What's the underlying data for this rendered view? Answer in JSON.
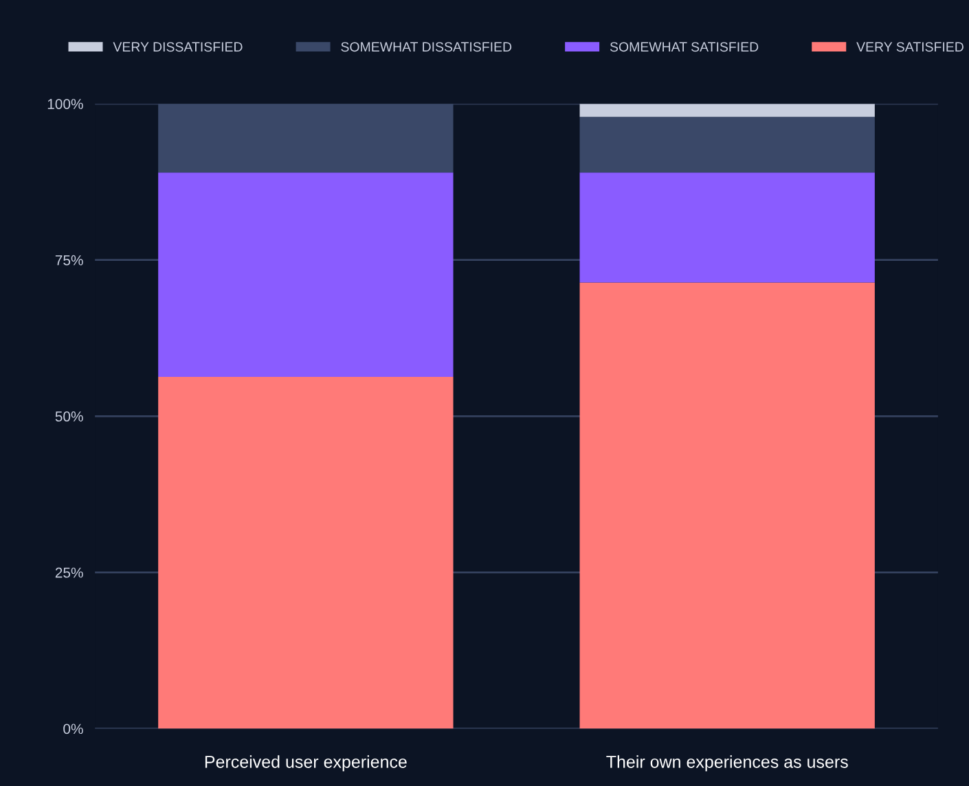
{
  "chart_data": {
    "type": "bar",
    "stacked": true,
    "categories": [
      "Perceived user experience",
      "Their own experiences as users"
    ],
    "series": [
      {
        "name": "VERY SATISFIED",
        "color": "#ff7a78",
        "values": [
          56.3,
          71.4
        ]
      },
      {
        "name": "SOMEWHAT SATISFIED",
        "color": "#8a5cff",
        "values": [
          32.7,
          17.6
        ]
      },
      {
        "name": "SOMEWHAT DISSATISFIED",
        "color": "#3a4868",
        "values": [
          11.0,
          8.9
        ]
      },
      {
        "name": "VERY DISSATISFIED",
        "color": "#c8cede",
        "values": [
          0,
          2.1
        ]
      }
    ],
    "ylim": [
      0,
      100
    ],
    "yticks": [
      {
        "value": 0,
        "label": "0%"
      },
      {
        "value": 25,
        "label": "25%"
      },
      {
        "value": 50,
        "label": "50%"
      },
      {
        "value": 75,
        "label": "75%"
      },
      {
        "value": 100,
        "label": "100%"
      }
    ],
    "grid": "y",
    "legend": "top"
  }
}
